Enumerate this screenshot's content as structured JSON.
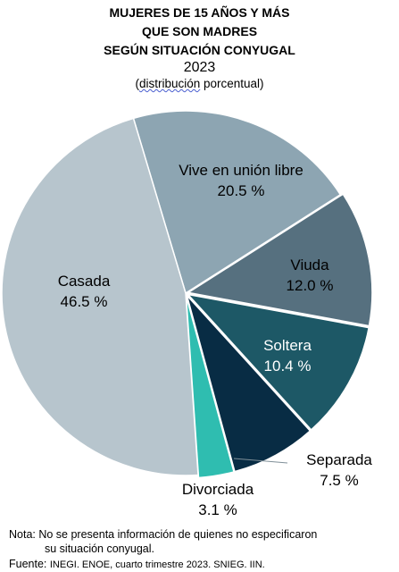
{
  "header": {
    "title_line1": "MUJERES DE 15 AÑOS Y MÁS",
    "title_line2": "QUE SON MADRES",
    "title_line3": "SEGÚN SITUACIÓN CONYUGAL",
    "year": "2023",
    "subtitle_prefix": "(",
    "subtitle_underlined": "distribución",
    "subtitle_rest": " porcentual)"
  },
  "chart_data": {
    "type": "pie",
    "title": "MUJERES DE 15 AÑOS Y MÁS QUE SON MADRES SEGÚN SITUACIÓN CONYUGAL",
    "subtitle": "2023 (distribución porcentual)",
    "slices": [
      {
        "label": "Vive  en unión libre",
        "value": 20.5,
        "display": "20.5 %",
        "color": "#8da5b2"
      },
      {
        "label": "Viuda",
        "value": 12.0,
        "display": "12.0 %",
        "color": "#56707f"
      },
      {
        "label": "Soltera",
        "value": 10.4,
        "display": "10.4 %",
        "color": "#1d5866"
      },
      {
        "label": "Separada",
        "value": 7.5,
        "display": "7.5 %",
        "color": "#082c44"
      },
      {
        "label": "Divorciada",
        "value": 3.1,
        "display": "3.1 %",
        "color": "#2fbdb0"
      },
      {
        "label": "Casada",
        "value": 46.5,
        "display": "46.5 %",
        "color": "#b7c5cd"
      }
    ],
    "label_color_light": "#000000",
    "label_color_dark": "#ffffff"
  },
  "footer": {
    "note_line1": "Nota: No se presenta información de quienes no especificaron",
    "note_line2": "su situación conyugal.",
    "source_prefix": "Fuente: ",
    "source_body": "INEGI. ENOE, cuarto trimestre 2023. SNIEG. IIN."
  }
}
